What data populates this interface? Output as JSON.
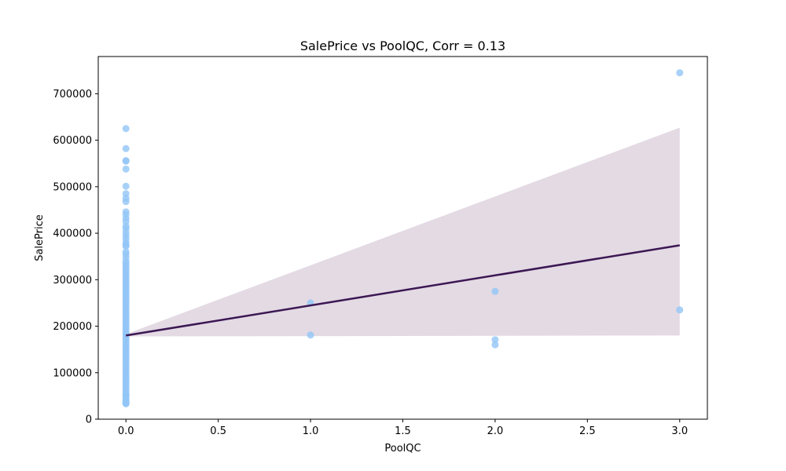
{
  "chart_data": {
    "type": "scatter",
    "title": "SalePrice vs PoolQC, Corr = 0.13",
    "xlabel": "PoolQC",
    "ylabel": "SalePrice",
    "xlim": [
      -0.15,
      3.15
    ],
    "ylim": [
      0,
      780000
    ],
    "grid": false,
    "x_ticks": [
      0.0,
      0.5,
      1.0,
      1.5,
      2.0,
      2.5,
      3.0
    ],
    "x_tick_labels": [
      "0.0",
      "0.5",
      "1.0",
      "1.5",
      "2.0",
      "2.5",
      "3.0"
    ],
    "y_ticks": [
      0,
      100000,
      200000,
      300000,
      400000,
      500000,
      600000,
      700000
    ],
    "y_tick_labels": [
      "0",
      "100000",
      "200000",
      "300000",
      "400000",
      "500000",
      "600000",
      "700000"
    ],
    "points": {
      "x": [
        0,
        0,
        0,
        0,
        0,
        0,
        0,
        0,
        0,
        0,
        0,
        0,
        0,
        0,
        0,
        0,
        0,
        0,
        0,
        0,
        0,
        0,
        0,
        0,
        0,
        0,
        0,
        0,
        0,
        0,
        0,
        0,
        0,
        0,
        0,
        0,
        0,
        0,
        0,
        0,
        0,
        0,
        0,
        0,
        0,
        0,
        0,
        0,
        0,
        0,
        0,
        0,
        0,
        0,
        0,
        0,
        0,
        0,
        0,
        0,
        0,
        0,
        0,
        0,
        0,
        0,
        0,
        0,
        0,
        0,
        0,
        0,
        0,
        0,
        0,
        0,
        0,
        0,
        0,
        0,
        0,
        0,
        0,
        0,
        0,
        0,
        0,
        0,
        0,
        0,
        1,
        1,
        2,
        2,
        2,
        3,
        3
      ],
      "y": [
        625000,
        582000,
        556000,
        555000,
        538000,
        501000,
        485000,
        475000,
        468000,
        446000,
        440000,
        432000,
        425000,
        415000,
        410000,
        402000,
        395000,
        388000,
        380000,
        375000,
        372000,
        360000,
        355000,
        348000,
        340000,
        335000,
        330000,
        325000,
        320000,
        315000,
        310000,
        305000,
        300000,
        295000,
        290000,
        285000,
        280000,
        275000,
        270000,
        265000,
        260000,
        255000,
        250000,
        245000,
        240000,
        235000,
        230000,
        225000,
        220000,
        215000,
        210000,
        205000,
        200000,
        195000,
        190000,
        185000,
        180000,
        175000,
        170000,
        165000,
        160000,
        155000,
        150000,
        145000,
        140000,
        135000,
        130000,
        125000,
        120000,
        115000,
        110000,
        105000,
        100000,
        95000,
        90000,
        85000,
        80000,
        75000,
        70000,
        65000,
        60000,
        55000,
        52000,
        50000,
        45000,
        40000,
        37000,
        35000,
        34900,
        33000,
        250000,
        181000,
        274900,
        171000,
        160000,
        745000,
        235000
      ]
    },
    "regression": {
      "x": [
        0,
        3
      ],
      "y": [
        180000,
        374000
      ],
      "ci_lower": [
        178000,
        180000
      ],
      "ci_upper": [
        183000,
        627000
      ]
    },
    "colors": {
      "points": "#92c5f6",
      "line": "#3c1753",
      "ci_band": "#e1d8e3"
    }
  }
}
